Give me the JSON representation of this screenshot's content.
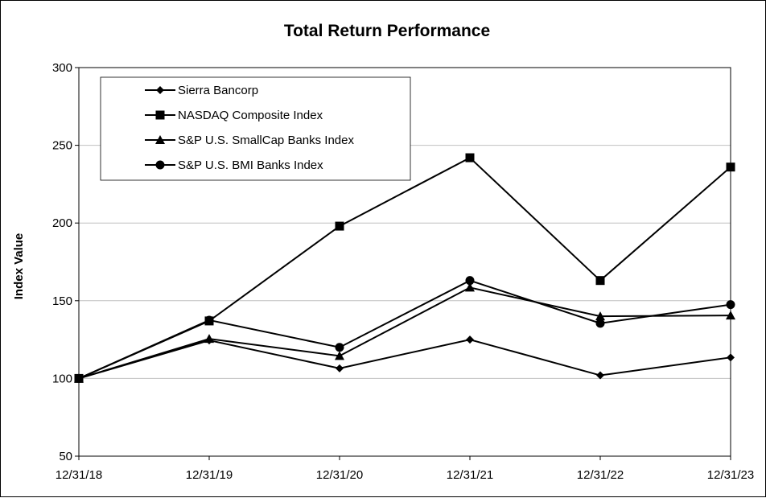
{
  "chart_data": {
    "type": "line",
    "title": "Total Return Performance",
    "xlabel": "",
    "ylabel": "Index Value",
    "categories": [
      "12/31/18",
      "12/31/19",
      "12/31/20",
      "12/31/21",
      "12/31/22",
      "12/31/23"
    ],
    "ylim": [
      50,
      300
    ],
    "yticks": [
      50,
      100,
      150,
      200,
      250,
      300
    ],
    "grid": "horizontal",
    "legend_position": "top-left",
    "series": [
      {
        "name": "Sierra Bancorp",
        "marker": "diamond",
        "values": [
          100,
          124.5,
          106.5,
          125,
          102,
          113.5
        ]
      },
      {
        "name": "NASDAQ Composite Index",
        "marker": "square",
        "values": [
          100,
          137,
          198,
          242,
          163,
          236
        ]
      },
      {
        "name": "S&P U.S. SmallCap Banks Index",
        "marker": "triangle",
        "values": [
          100,
          125.5,
          114.5,
          158.5,
          140,
          140.5
        ]
      },
      {
        "name": "S&P U.S. BMI Banks Index",
        "marker": "circle",
        "values": [
          100,
          137.5,
          120,
          163,
          135.5,
          147.5
        ]
      }
    ],
    "colors": {
      "line": "#000000",
      "grid": "#c0c0c0",
      "background": "#ffffff"
    }
  }
}
